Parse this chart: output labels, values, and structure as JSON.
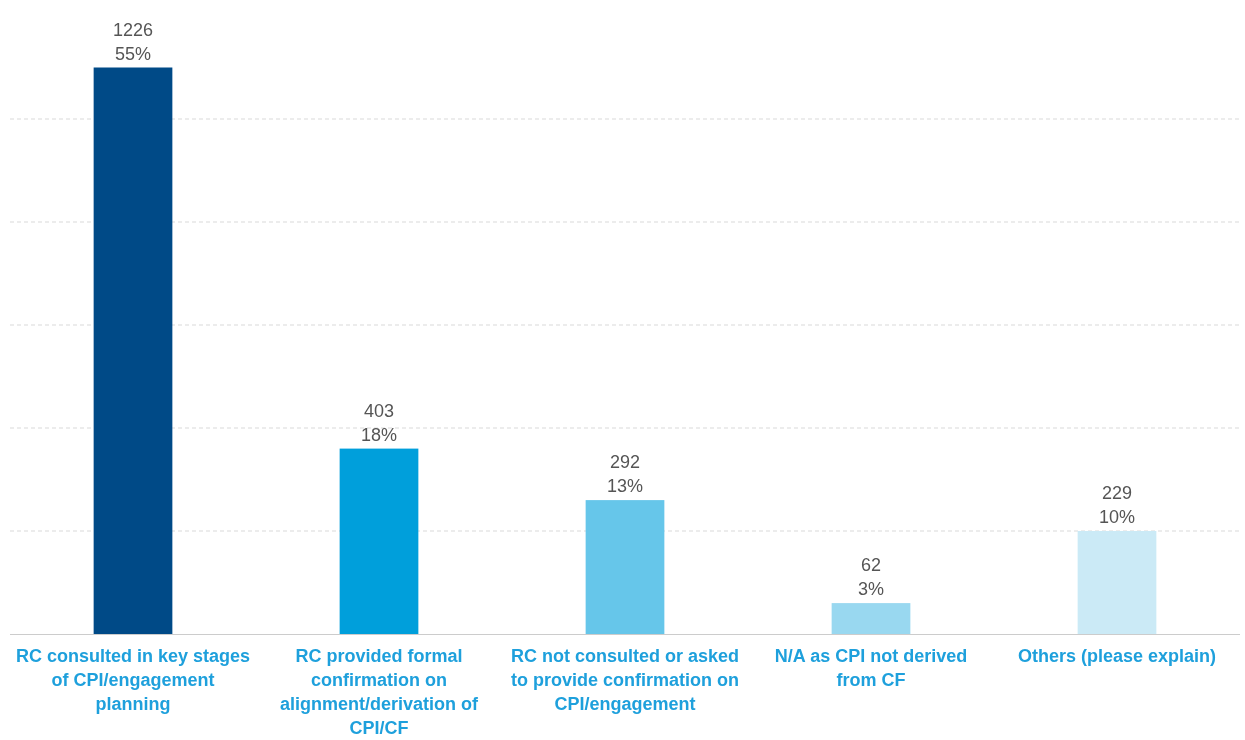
{
  "chart_data": {
    "type": "bar",
    "categories": [
      "RC consulted in key stages of CPI/engagement planning",
      "RC provided formal confirmation on alignment/derivation of CPI/CF",
      "RC not consulted or asked to provide confirmation on CPI/engagement",
      "N/A as CPI not derived from CF",
      "Others (please explain)"
    ],
    "values": [
      55,
      18,
      13,
      3,
      10
    ],
    "colors": [
      "#004a87",
      "#009fdb",
      "#66c6ea",
      "#99d8f0",
      "#cbeaf6"
    ],
    "value_labels": [
      "1226\n55%",
      "403\n18%",
      "292\n13%",
      "62\n3%",
      "229\n10%"
    ],
    "yticks": [
      {
        "value": 0,
        "label": null
      },
      {
        "value": 10,
        "label": null
      },
      {
        "value": 20,
        "label": null
      },
      {
        "value": 30,
        "label": null
      },
      {
        "value": 40,
        "label": null
      },
      {
        "value": 50,
        "label": null
      }
    ],
    "grid": "y",
    "tick_labels": "x"
  }
}
